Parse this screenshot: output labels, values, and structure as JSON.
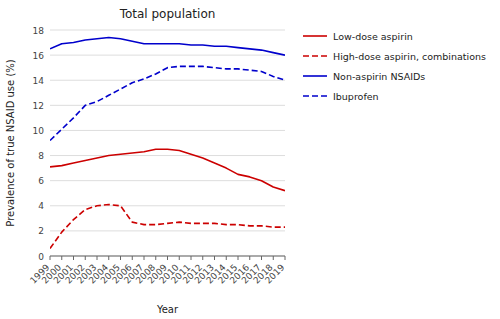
{
  "chart_data": {
    "type": "line",
    "title": "Total population",
    "x_label": "Year",
    "y_label": "Prevalence of true NSAID use (%)",
    "x": [
      1999,
      2000,
      2001,
      2002,
      2003,
      2004,
      2005,
      2006,
      2007,
      2008,
      2009,
      2010,
      2011,
      2012,
      2013,
      2014,
      2015,
      2016,
      2017,
      2018,
      2019
    ],
    "series": [
      {
        "name": "Low-dose aspirin",
        "color": "#cc0000",
        "line_style": "solid",
        "values": [
          7.1,
          7.2,
          7.4,
          7.6,
          7.8,
          8.0,
          8.1,
          8.2,
          8.3,
          8.5,
          8.5,
          8.4,
          8.1,
          7.8,
          7.4,
          7.0,
          6.5,
          6.3,
          6.0,
          5.5,
          5.2
        ]
      },
      {
        "name": "High-dose aspirin, combinations",
        "color": "#cc0000",
        "line_style": "dashed",
        "values": [
          0.6,
          1.9,
          2.9,
          3.7,
          4.0,
          4.1,
          4.0,
          2.7,
          2.5,
          2.5,
          2.6,
          2.7,
          2.6,
          2.6,
          2.6,
          2.5,
          2.5,
          2.4,
          2.4,
          2.3,
          2.3
        ]
      },
      {
        "name": "Non-aspirin NSAIDs",
        "color": "#0000cc",
        "line_style": "solid",
        "values": [
          16.5,
          16.9,
          17.0,
          17.2,
          17.3,
          17.4,
          17.3,
          17.1,
          16.9,
          16.9,
          16.9,
          16.9,
          16.8,
          16.8,
          16.7,
          16.7,
          16.6,
          16.5,
          16.4,
          16.2,
          16.0
        ]
      },
      {
        "name": "Ibuprofen",
        "color": "#0000cc",
        "line_style": "dashed",
        "values": [
          9.2,
          10.1,
          11.0,
          12.0,
          12.3,
          12.8,
          13.3,
          13.8,
          14.1,
          14.5,
          15.0,
          15.1,
          15.1,
          15.1,
          15.0,
          14.9,
          14.9,
          14.8,
          14.7,
          14.3,
          14.0
        ]
      }
    ],
    "xlim": [
      1999,
      2019
    ],
    "xticks": [
      1999,
      2000,
      2001,
      2002,
      2003,
      2004,
      2005,
      2006,
      2007,
      2008,
      2009,
      2010,
      2011,
      2012,
      2013,
      2014,
      2015,
      2016,
      2017,
      2018,
      2019
    ],
    "ylim": [
      0,
      18
    ],
    "yticks": [
      0,
      2,
      4,
      6,
      8,
      10,
      12,
      14,
      16,
      18
    ],
    "grid": true,
    "legend": "right"
  }
}
